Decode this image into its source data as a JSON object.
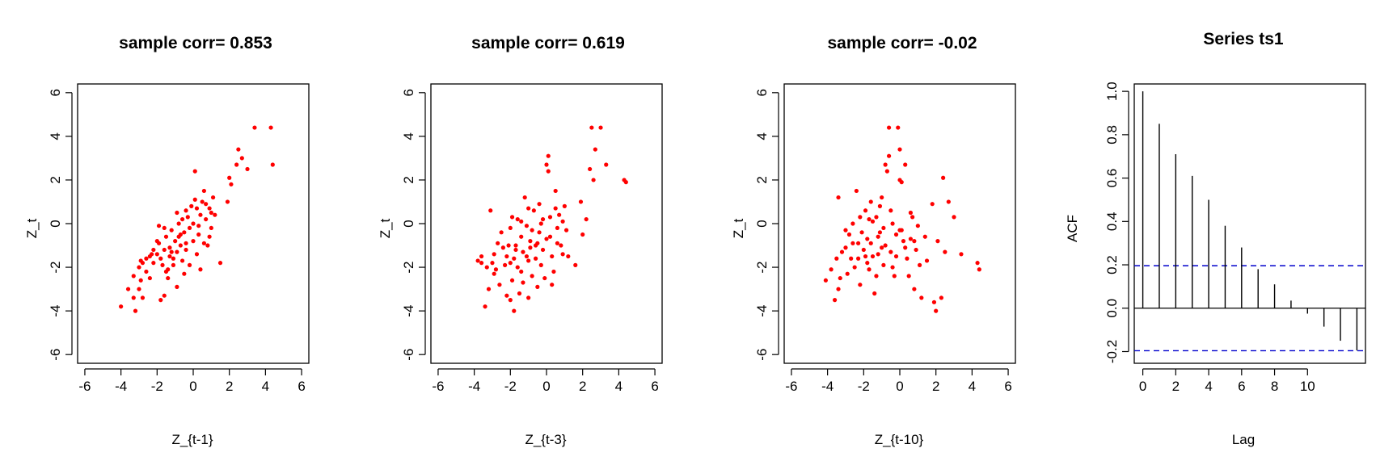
{
  "colors": {
    "points": "#ff0000",
    "ci_line": "#0000cc",
    "axis": "#000000"
  },
  "chart_data": [
    {
      "type": "scatter",
      "title": "sample corr= 0.853",
      "xlabel": "Z_{t-1}",
      "ylabel": "Z_t",
      "xlim": [
        -6.4,
        6.4
      ],
      "ylim": [
        -6.4,
        6.4
      ],
      "xticks": [
        -6,
        -4,
        -2,
        0,
        2,
        4,
        6
      ],
      "yticks": [
        -6,
        -4,
        -2,
        0,
        2,
        4,
        6
      ],
      "points": [
        [
          -4.0,
          -3.8
        ],
        [
          -3.6,
          -3.0
        ],
        [
          -3.3,
          -3.4
        ],
        [
          -3.2,
          -4.0
        ],
        [
          -3.0,
          -3.0
        ],
        [
          -2.9,
          -2.6
        ],
        [
          -2.8,
          -3.4
        ],
        [
          -3.3,
          -2.4
        ],
        [
          -3.0,
          -2.0
        ],
        [
          -2.8,
          -1.8
        ],
        [
          -2.6,
          -2.2
        ],
        [
          -2.4,
          -1.5
        ],
        [
          -2.2,
          -1.8
        ],
        [
          -2.2,
          -1.2
        ],
        [
          -2.0,
          -1.4
        ],
        [
          -1.9,
          -0.9
        ],
        [
          -1.8,
          -3.5
        ],
        [
          -1.6,
          -3.3
        ],
        [
          -1.8,
          -1.6
        ],
        [
          -1.7,
          -1.9
        ],
        [
          -1.6,
          -1.2
        ],
        [
          -1.5,
          -0.6
        ],
        [
          -1.4,
          -2.5
        ],
        [
          -1.4,
          -2.1
        ],
        [
          -1.3,
          -1.1
        ],
        [
          -1.2,
          -0.3
        ],
        [
          -1.1,
          -1.6
        ],
        [
          -1.0,
          -0.8
        ],
        [
          -0.9,
          -2.9
        ],
        [
          -0.9,
          -1.3
        ],
        [
          -0.8,
          0.0
        ],
        [
          -0.8,
          -0.6
        ],
        [
          -0.7,
          -1.0
        ],
        [
          -0.6,
          0.2
        ],
        [
          -0.6,
          -1.7
        ],
        [
          -0.5,
          -0.4
        ],
        [
          -0.4,
          -0.9
        ],
        [
          -0.4,
          0.6
        ],
        [
          -0.3,
          0.3
        ],
        [
          -0.2,
          -1.9
        ],
        [
          -0.2,
          -0.2
        ],
        [
          -0.1,
          0.8
        ],
        [
          0.0,
          0.0
        ],
        [
          0.0,
          -0.8
        ],
        [
          0.1,
          1.1
        ],
        [
          0.1,
          2.4
        ],
        [
          0.2,
          -1.4
        ],
        [
          0.3,
          -0.5
        ],
        [
          0.4,
          0.4
        ],
        [
          0.4,
          -2.1
        ],
        [
          0.5,
          1.0
        ],
        [
          0.6,
          -0.9
        ],
        [
          0.6,
          1.5
        ],
        [
          0.7,
          0.2
        ],
        [
          0.8,
          -1.0
        ],
        [
          0.9,
          0.7
        ],
        [
          1.0,
          0.5
        ],
        [
          1.1,
          1.2
        ],
        [
          1.2,
          0.4
        ],
        [
          1.0,
          -0.2
        ],
        [
          -1.9,
          -0.1
        ],
        [
          -2.3,
          -1.4
        ],
        [
          -2.6,
          -1.6
        ],
        [
          -1.2,
          -1.3
        ],
        [
          -0.5,
          -2.3
        ],
        [
          1.5,
          -1.8
        ],
        [
          1.9,
          1.0
        ],
        [
          2.0,
          2.1
        ],
        [
          2.1,
          1.8
        ],
        [
          2.4,
          2.7
        ],
        [
          2.5,
          3.4
        ],
        [
          2.7,
          3.0
        ],
        [
          3.0,
          2.5
        ],
        [
          3.4,
          4.4
        ],
        [
          4.3,
          4.4
        ],
        [
          4.4,
          2.7
        ],
        [
          -1.5,
          -2.2
        ],
        [
          -1.1,
          -1.9
        ],
        [
          -0.9,
          0.5
        ],
        [
          -0.4,
          -1.2
        ],
        [
          0.3,
          -0.1
        ],
        [
          0.7,
          0.9
        ],
        [
          -2.0,
          -0.8
        ],
        [
          -1.6,
          -0.2
        ],
        [
          -2.9,
          -1.7
        ],
        [
          0.9,
          -0.6
        ],
        [
          -0.7,
          -0.5
        ],
        [
          -1.3,
          -1.5
        ],
        [
          -2.4,
          -2.5
        ],
        [
          0.2,
          0.7
        ]
      ]
    },
    {
      "type": "scatter",
      "title": "sample corr= 0.619",
      "xlabel": "Z_{t-3}",
      "ylabel": "Z_t",
      "xlim": [
        -6.4,
        6.4
      ],
      "ylim": [
        -6.4,
        6.4
      ],
      "xticks": [
        -6,
        -4,
        -2,
        0,
        2,
        4,
        6
      ],
      "yticks": [
        -6,
        -4,
        -2,
        0,
        2,
        4,
        6
      ],
      "points": [
        [
          -3.8,
          -1.7
        ],
        [
          -3.6,
          -1.5
        ],
        [
          -3.4,
          -3.8
        ],
        [
          -3.3,
          -2.0
        ],
        [
          -3.2,
          -3.0
        ],
        [
          -3.1,
          0.6
        ],
        [
          -2.9,
          -1.4
        ],
        [
          -2.8,
          -2.1
        ],
        [
          -2.7,
          -0.9
        ],
        [
          -2.5,
          -0.4
        ],
        [
          -2.3,
          -1.9
        ],
        [
          -2.2,
          -3.3
        ],
        [
          -2.1,
          -1.0
        ],
        [
          -2.0,
          -0.2
        ],
        [
          -2.0,
          -3.5
        ],
        [
          -1.9,
          -2.6
        ],
        [
          -1.8,
          -4.0
        ],
        [
          -1.8,
          -1.6
        ],
        [
          -1.7,
          -1.0
        ],
        [
          -1.6,
          0.2
        ],
        [
          -1.5,
          -3.2
        ],
        [
          -1.4,
          -2.2
        ],
        [
          -1.4,
          -0.6
        ],
        [
          -1.3,
          -1.3
        ],
        [
          -1.2,
          1.2
        ],
        [
          -1.1,
          -0.1
        ],
        [
          -1.0,
          -1.7
        ],
        [
          -1.0,
          -3.4
        ],
        [
          -0.9,
          -0.8
        ],
        [
          -0.8,
          -2.4
        ],
        [
          -0.7,
          0.6
        ],
        [
          -0.6,
          -1.0
        ],
        [
          -0.5,
          -2.9
        ],
        [
          -0.4,
          -0.4
        ],
        [
          -0.3,
          0.0
        ],
        [
          -0.3,
          -1.9
        ],
        [
          -0.2,
          -1.2
        ],
        [
          -0.1,
          -2.5
        ],
        [
          0.0,
          2.7
        ],
        [
          0.0,
          -0.7
        ],
        [
          0.1,
          3.1
        ],
        [
          0.1,
          2.4
        ],
        [
          0.2,
          0.3
        ],
        [
          0.3,
          -1.5
        ],
        [
          0.4,
          -2.2
        ],
        [
          0.5,
          1.5
        ],
        [
          0.6,
          -0.2
        ],
        [
          0.7,
          0.4
        ],
        [
          0.8,
          -1.0
        ],
        [
          0.9,
          -1.4
        ],
        [
          1.0,
          0.8
        ],
        [
          1.1,
          -0.3
        ],
        [
          1.2,
          -1.5
        ],
        [
          1.6,
          -1.9
        ],
        [
          1.9,
          1.0
        ],
        [
          2.0,
          -0.5
        ],
        [
          2.2,
          0.2
        ],
        [
          2.4,
          2.5
        ],
        [
          2.5,
          4.4
        ],
        [
          2.6,
          2.0
        ],
        [
          2.7,
          3.4
        ],
        [
          3.0,
          4.4
        ],
        [
          3.3,
          2.7
        ],
        [
          4.3,
          2.0
        ],
        [
          4.4,
          1.9
        ],
        [
          -2.4,
          -1.1
        ],
        [
          -1.6,
          -2.0
        ],
        [
          -1.1,
          -1.5
        ],
        [
          -0.4,
          0.9
        ],
        [
          0.2,
          -0.6
        ],
        [
          -2.6,
          -2.8
        ],
        [
          -1.9,
          0.3
        ],
        [
          -0.8,
          -0.3
        ],
        [
          0.6,
          -0.9
        ],
        [
          -1.3,
          -2.7
        ],
        [
          -0.6,
          -1.6
        ],
        [
          -3.0,
          -1.8
        ],
        [
          -2.2,
          -1.5
        ],
        [
          -0.2,
          0.2
        ],
        [
          0.3,
          -2.8
        ],
        [
          -1.7,
          -1.2
        ],
        [
          -1.0,
          0.7
        ],
        [
          -0.5,
          -0.9
        ],
        [
          0.9,
          0.1
        ],
        [
          -2.9,
          -2.3
        ],
        [
          -1.4,
          0.1
        ],
        [
          -0.9,
          -1.1
        ],
        [
          0.5,
          0.7
        ],
        [
          -3.6,
          -1.8
        ],
        [
          -2.0,
          -1.8
        ]
      ]
    },
    {
      "type": "scatter",
      "title": "sample corr= -0.02",
      "xlabel": "Z_{t-10}",
      "ylabel": "Z_t",
      "xlim": [
        -6.4,
        6.4
      ],
      "ylim": [
        -6.4,
        6.4
      ],
      "xticks": [
        -6,
        -4,
        -2,
        0,
        2,
        4,
        6
      ],
      "yticks": [
        -6,
        -4,
        -2,
        0,
        2,
        4,
        6
      ],
      "points": [
        [
          -4.1,
          -2.6
        ],
        [
          -3.8,
          -2.1
        ],
        [
          -3.6,
          -3.5
        ],
        [
          -3.5,
          -1.6
        ],
        [
          -3.4,
          -3.0
        ],
        [
          -3.4,
          1.2
        ],
        [
          -3.2,
          -1.3
        ],
        [
          -3.0,
          -0.3
        ],
        [
          -2.9,
          -2.3
        ],
        [
          -2.7,
          -1.6
        ],
        [
          -2.6,
          -0.9
        ],
        [
          -2.5,
          -2.0
        ],
        [
          -2.4,
          1.5
        ],
        [
          -2.3,
          -0.9
        ],
        [
          -2.2,
          -2.8
        ],
        [
          -2.1,
          -0.4
        ],
        [
          -2.0,
          -1.2
        ],
        [
          -1.9,
          0.6
        ],
        [
          -1.8,
          -1.8
        ],
        [
          -1.8,
          -0.7
        ],
        [
          -1.7,
          -2.1
        ],
        [
          -1.6,
          1.0
        ],
        [
          -1.5,
          0.1
        ],
        [
          -1.5,
          -1.5
        ],
        [
          -1.4,
          -3.2
        ],
        [
          -1.3,
          0.3
        ],
        [
          -1.2,
          -0.6
        ],
        [
          -1.2,
          -1.4
        ],
        [
          -1.1,
          0.8
        ],
        [
          -1.0,
          -1.1
        ],
        [
          -0.9,
          -0.2
        ],
        [
          -0.9,
          -1.9
        ],
        [
          -0.8,
          2.7
        ],
        [
          -0.7,
          2.4
        ],
        [
          -0.6,
          3.1
        ],
        [
          -0.6,
          4.4
        ],
        [
          -0.5,
          -1.3
        ],
        [
          -0.4,
          0.0
        ],
        [
          -0.3,
          -2.4
        ],
        [
          -0.2,
          -0.5
        ],
        [
          -0.1,
          4.4
        ],
        [
          0.0,
          2.0
        ],
        [
          0.0,
          3.4
        ],
        [
          0.1,
          -0.3
        ],
        [
          0.1,
          1.9
        ],
        [
          0.2,
          -0.8
        ],
        [
          0.3,
          2.7
        ],
        [
          0.4,
          -1.6
        ],
        [
          0.5,
          -2.4
        ],
        [
          0.6,
          -0.7
        ],
        [
          0.7,
          0.3
        ],
        [
          0.8,
          -3.0
        ],
        [
          0.9,
          -1.2
        ],
        [
          1.0,
          -0.1
        ],
        [
          1.1,
          -1.9
        ],
        [
          1.2,
          -3.4
        ],
        [
          1.4,
          -0.6
        ],
        [
          1.9,
          -3.6
        ],
        [
          2.0,
          -4.0
        ],
        [
          2.1,
          -0.8
        ],
        [
          2.3,
          -3.4
        ],
        [
          2.4,
          2.1
        ],
        [
          2.5,
          -1.3
        ],
        [
          2.7,
          1.0
        ],
        [
          3.0,
          0.3
        ],
        [
          3.4,
          -1.4
        ],
        [
          4.3,
          -1.8
        ],
        [
          4.4,
          -2.1
        ],
        [
          -2.8,
          -0.5
        ],
        [
          -1.6,
          -0.9
        ],
        [
          -0.8,
          -1.0
        ],
        [
          0.3,
          -1.1
        ],
        [
          -2.2,
          0.3
        ],
        [
          -1.0,
          1.2
        ],
        [
          0.6,
          0.5
        ],
        [
          -3.0,
          -1.1
        ],
        [
          -1.9,
          -1.5
        ],
        [
          -0.4,
          -2.0
        ],
        [
          1.5,
          -1.7
        ],
        [
          -2.6,
          0.0
        ],
        [
          -1.3,
          -2.4
        ],
        [
          0.0,
          -0.3
        ],
        [
          -3.3,
          -2.5
        ],
        [
          -1.7,
          0.2
        ],
        [
          -0.5,
          0.6
        ],
        [
          0.8,
          -0.8
        ],
        [
          -2.3,
          -1.6
        ],
        [
          -1.1,
          -0.4
        ],
        [
          1.8,
          0.9
        ],
        [
          -0.2,
          -1.5
        ]
      ]
    },
    {
      "type": "bar",
      "title": "Series  ts1",
      "xlabel": "Lag",
      "ylabel": "ACF",
      "xlim": [
        -0.52,
        13.52
      ],
      "ylim": [
        -0.254,
        1.034
      ],
      "xticks": [
        0,
        2,
        4,
        6,
        8,
        10
      ],
      "yticks": [
        -0.2,
        0.0,
        0.2,
        0.4,
        0.6,
        0.8,
        1.0
      ],
      "ytick_labels": [
        "-0.2",
        "0.0",
        "0.2",
        "0.4",
        "0.6",
        "0.8",
        "1.0"
      ],
      "lags": [
        0,
        1,
        2,
        3,
        4,
        5,
        6,
        7,
        8,
        9,
        10,
        11,
        12,
        13
      ],
      "values": [
        1.0,
        0.85,
        0.71,
        0.61,
        0.5,
        0.38,
        0.28,
        0.18,
        0.11,
        0.035,
        -0.025,
        -0.085,
        -0.15,
        -0.195
      ],
      "conf_bound": 0.196
    }
  ]
}
